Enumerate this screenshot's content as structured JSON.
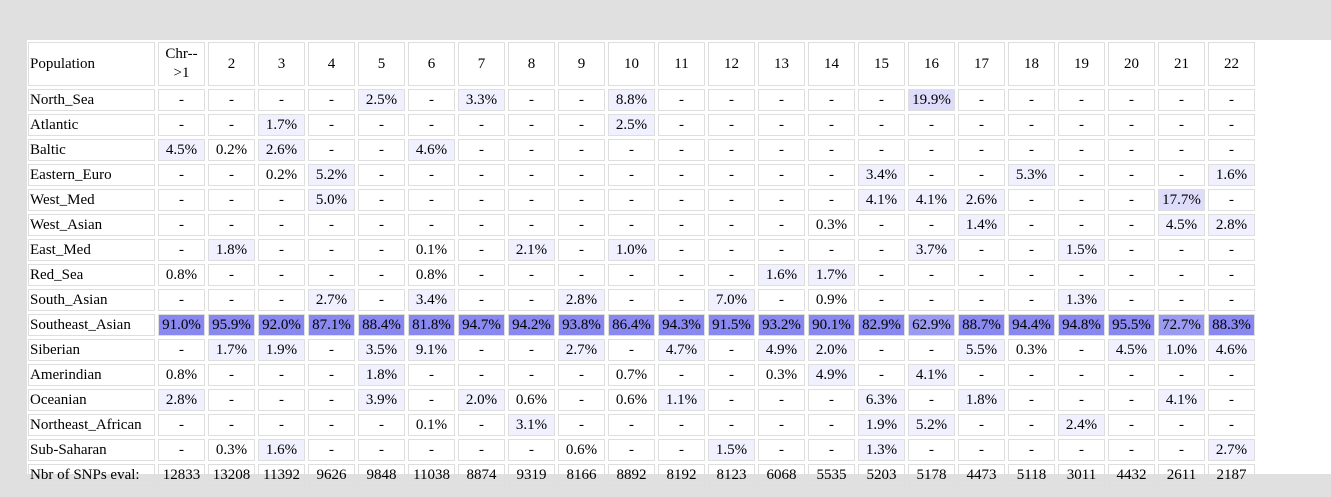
{
  "table": {
    "header": {
      "population_label": "Population",
      "chromosomes": [
        "Chr-->1",
        "2",
        "3",
        "4",
        "5",
        "6",
        "7",
        "8",
        "9",
        "10",
        "11",
        "12",
        "13",
        "14",
        "15",
        "16",
        "17",
        "18",
        "19",
        "20",
        "21",
        "22"
      ]
    },
    "rows": [
      {
        "name": "North_Sea",
        "values": [
          "-",
          "-",
          "-",
          "-",
          "2.5%",
          "-",
          "3.3%",
          "-",
          "-",
          "8.8%",
          "-",
          "-",
          "-",
          "-",
          "-",
          "19.9%",
          "-",
          "-",
          "-",
          "-",
          "-",
          "-"
        ]
      },
      {
        "name": "Atlantic",
        "values": [
          "-",
          "-",
          "1.7%",
          "-",
          "-",
          "-",
          "-",
          "-",
          "-",
          "2.5%",
          "-",
          "-",
          "-",
          "-",
          "-",
          "-",
          "-",
          "-",
          "-",
          "-",
          "-",
          "-"
        ]
      },
      {
        "name": "Baltic",
        "values": [
          "4.5%",
          "0.2%",
          "2.6%",
          "-",
          "-",
          "4.6%",
          "-",
          "-",
          "-",
          "-",
          "-",
          "-",
          "-",
          "-",
          "-",
          "-",
          "-",
          "-",
          "-",
          "-",
          "-",
          "-"
        ]
      },
      {
        "name": "Eastern_Euro",
        "values": [
          "-",
          "-",
          "0.2%",
          "5.2%",
          "-",
          "-",
          "-",
          "-",
          "-",
          "-",
          "-",
          "-",
          "-",
          "-",
          "3.4%",
          "-",
          "-",
          "5.3%",
          "-",
          "-",
          "-",
          "1.6%"
        ]
      },
      {
        "name": "West_Med",
        "values": [
          "-",
          "-",
          "-",
          "5.0%",
          "-",
          "-",
          "-",
          "-",
          "-",
          "-",
          "-",
          "-",
          "-",
          "-",
          "4.1%",
          "4.1%",
          "2.6%",
          "-",
          "-",
          "-",
          "17.7%",
          "-"
        ]
      },
      {
        "name": "West_Asian",
        "values": [
          "-",
          "-",
          "-",
          "-",
          "-",
          "-",
          "-",
          "-",
          "-",
          "-",
          "-",
          "-",
          "-",
          "0.3%",
          "-",
          "-",
          "1.4%",
          "-",
          "-",
          "-",
          "4.5%",
          "2.8%"
        ]
      },
      {
        "name": "East_Med",
        "values": [
          "-",
          "1.8%",
          "-",
          "-",
          "-",
          "0.1%",
          "-",
          "2.1%",
          "-",
          "1.0%",
          "-",
          "-",
          "-",
          "-",
          "-",
          "3.7%",
          "-",
          "-",
          "1.5%",
          "-",
          "-",
          "-"
        ]
      },
      {
        "name": "Red_Sea",
        "values": [
          "0.8%",
          "-",
          "-",
          "-",
          "-",
          "0.8%",
          "-",
          "-",
          "-",
          "-",
          "-",
          "-",
          "1.6%",
          "1.7%",
          "-",
          "-",
          "-",
          "-",
          "-",
          "-",
          "-",
          "-"
        ]
      },
      {
        "name": "South_Asian",
        "values": [
          "-",
          "-",
          "-",
          "2.7%",
          "-",
          "3.4%",
          "-",
          "-",
          "2.8%",
          "-",
          "-",
          "7.0%",
          "-",
          "0.9%",
          "-",
          "-",
          "-",
          "-",
          "1.3%",
          "-",
          "-",
          "-"
        ]
      },
      {
        "name": "Southeast_Asian",
        "values": [
          "91.0%",
          "95.9%",
          "92.0%",
          "87.1%",
          "88.4%",
          "81.8%",
          "94.7%",
          "94.2%",
          "93.8%",
          "86.4%",
          "94.3%",
          "91.5%",
          "93.2%",
          "90.1%",
          "82.9%",
          "62.9%",
          "88.7%",
          "94.4%",
          "94.8%",
          "95.5%",
          "72.7%",
          "88.3%"
        ]
      },
      {
        "name": "Siberian",
        "values": [
          "-",
          "1.7%",
          "1.9%",
          "-",
          "3.5%",
          "9.1%",
          "-",
          "-",
          "2.7%",
          "-",
          "4.7%",
          "-",
          "4.9%",
          "2.0%",
          "-",
          "-",
          "5.5%",
          "0.3%",
          "-",
          "4.5%",
          "1.0%",
          "4.6%"
        ]
      },
      {
        "name": "Amerindian",
        "values": [
          "0.8%",
          "-",
          "-",
          "-",
          "1.8%",
          "-",
          "-",
          "-",
          "-",
          "0.7%",
          "-",
          "-",
          "0.3%",
          "4.9%",
          "-",
          "4.1%",
          "-",
          "-",
          "-",
          "-",
          "-",
          "-"
        ]
      },
      {
        "name": "Oceanian",
        "values": [
          "2.8%",
          "-",
          "-",
          "-",
          "3.9%",
          "-",
          "2.0%",
          "0.6%",
          "-",
          "0.6%",
          "1.1%",
          "-",
          "-",
          "-",
          "6.3%",
          "-",
          "1.8%",
          "-",
          "-",
          "-",
          "4.1%",
          "-"
        ]
      },
      {
        "name": "Northeast_African",
        "values": [
          "-",
          "-",
          "-",
          "-",
          "-",
          "0.1%",
          "-",
          "3.1%",
          "-",
          "-",
          "-",
          "-",
          "-",
          "-",
          "1.9%",
          "5.2%",
          "-",
          "-",
          "2.4%",
          "-",
          "-",
          "-"
        ]
      },
      {
        "name": "Sub-Saharan",
        "values": [
          "-",
          "0.3%",
          "1.6%",
          "-",
          "-",
          "-",
          "-",
          "-",
          "0.6%",
          "-",
          "-",
          "1.5%",
          "-",
          "-",
          "1.3%",
          "-",
          "-",
          "-",
          "-",
          "-",
          "-",
          "2.7%"
        ]
      }
    ],
    "footer": {
      "label": "Nbr of SNPs eval:",
      "values": [
        "12833",
        "13208",
        "11392",
        "9626",
        "9848",
        "11038",
        "8874",
        "9319",
        "8166",
        "8892",
        "8192",
        "8123",
        "6068",
        "5535",
        "5203",
        "5178",
        "4473",
        "5118",
        "3011",
        "4432",
        "2611",
        "2187"
      ]
    },
    "highlight_colors": {
      "light": "#f0f0ff",
      "medium": "#ddddfb",
      "strong": "#8888f0"
    }
  }
}
